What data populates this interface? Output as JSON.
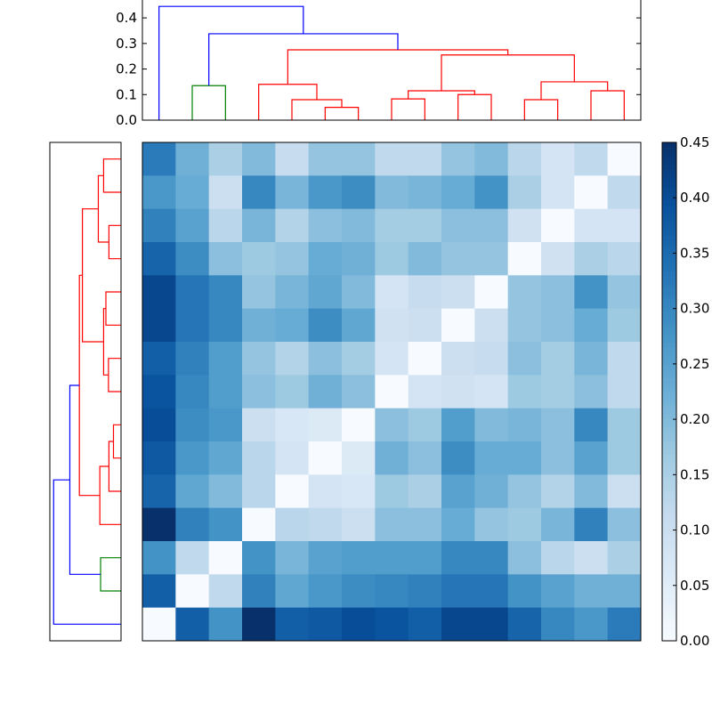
{
  "chart_data": [
    {
      "type": "dendrogram",
      "position": "top",
      "ylim": [
        0,
        0.47
      ],
      "yticks": [
        "0.0",
        "0.1",
        "0.2",
        "0.3",
        "0.4"
      ],
      "ytick_values": [
        0,
        0.1,
        0.2,
        0.3,
        0.4
      ],
      "leaf_count": 15,
      "links": [
        {
          "a": 1,
          "b": 2,
          "height": 0.135,
          "ha": 0,
          "hb": 0,
          "color": "#008000"
        },
        {
          "a": 5,
          "b": 6,
          "height": 0.05,
          "ha": 0,
          "hb": 0,
          "color": "#ff0000"
        },
        {
          "a": 4,
          "b": 5.5,
          "height": 0.08,
          "ha": 0,
          "hb": 0.05,
          "color": "#ff0000"
        },
        {
          "a": 3,
          "b": 4.75,
          "height": 0.14,
          "ha": 0,
          "hb": 0.08,
          "color": "#ff0000"
        },
        {
          "a": 7,
          "b": 8,
          "height": 0.083,
          "ha": 0,
          "hb": 0,
          "color": "#ff0000"
        },
        {
          "a": 9,
          "b": 10,
          "height": 0.1,
          "ha": 0,
          "hb": 0,
          "color": "#ff0000"
        },
        {
          "a": 7.5,
          "b": 9.5,
          "height": 0.115,
          "ha": 0.083,
          "hb": 0.1,
          "color": "#ff0000"
        },
        {
          "a": 11,
          "b": 12,
          "height": 0.08,
          "ha": 0,
          "hb": 0,
          "color": "#ff0000"
        },
        {
          "a": 13,
          "b": 14,
          "height": 0.115,
          "ha": 0,
          "hb": 0,
          "color": "#ff0000"
        },
        {
          "a": 11.5,
          "b": 13.5,
          "height": 0.15,
          "ha": 0.08,
          "hb": 0.115,
          "color": "#ff0000"
        },
        {
          "a": 8.5,
          "b": 12.5,
          "height": 0.255,
          "ha": 0.115,
          "hb": 0.15,
          "color": "#ff0000"
        },
        {
          "a": 3.875,
          "b": 10.5,
          "height": 0.275,
          "ha": 0.14,
          "hb": 0.255,
          "color": "#ff0000"
        },
        {
          "a": 1.5,
          "b": 7.1875,
          "height": 0.338,
          "ha": 0.135,
          "hb": 0.275,
          "color": "#0000ff"
        },
        {
          "a": 0,
          "b": 4.34375,
          "height": 0.445,
          "ha": 0,
          "hb": 0.338,
          "color": "#0000ff"
        }
      ]
    },
    {
      "type": "dendrogram",
      "position": "left",
      "orientation": "left, leaves ordered bottom to top",
      "same_tree_as": "top"
    },
    {
      "type": "heatmap",
      "colormap": "Blues",
      "vmin": 0,
      "vmax": 0.45,
      "colorbar_ticks": [
        "0.00",
        "0.05",
        "0.10",
        "0.15",
        "0.20",
        "0.25",
        "0.30",
        "0.35",
        "0.40",
        "0.45"
      ],
      "colorbar_tick_values": [
        0,
        0.05,
        0.1,
        0.15,
        0.2,
        0.25,
        0.3,
        0.35,
        0.4,
        0.45
      ],
      "rows_top_to_bottom": [
        [
          0.32,
          0.22,
          0.15,
          0.2,
          0.11,
          0.18,
          0.18,
          0.12,
          0.12,
          0.18,
          0.2,
          0.13,
          0.08,
          0.12,
          0.0
        ],
        [
          0.27,
          0.23,
          0.1,
          0.3,
          0.21,
          0.27,
          0.29,
          0.2,
          0.21,
          0.23,
          0.28,
          0.15,
          0.08,
          0.0,
          0.12
        ],
        [
          0.31,
          0.25,
          0.13,
          0.21,
          0.14,
          0.19,
          0.2,
          0.16,
          0.16,
          0.19,
          0.19,
          0.09,
          0.0,
          0.08,
          0.08
        ],
        [
          0.36,
          0.29,
          0.19,
          0.17,
          0.18,
          0.23,
          0.22,
          0.17,
          0.2,
          0.18,
          0.18,
          0.0,
          0.09,
          0.15,
          0.13
        ],
        [
          0.41,
          0.33,
          0.3,
          0.18,
          0.21,
          0.24,
          0.2,
          0.08,
          0.11,
          0.1,
          0.0,
          0.18,
          0.19,
          0.28,
          0.18
        ],
        [
          0.41,
          0.33,
          0.3,
          0.22,
          0.23,
          0.29,
          0.24,
          0.09,
          0.1,
          0.0,
          0.1,
          0.18,
          0.19,
          0.23,
          0.17
        ],
        [
          0.37,
          0.31,
          0.26,
          0.18,
          0.14,
          0.19,
          0.16,
          0.08,
          0.0,
          0.1,
          0.11,
          0.19,
          0.16,
          0.21,
          0.12
        ],
        [
          0.39,
          0.3,
          0.26,
          0.19,
          0.17,
          0.22,
          0.19,
          0.0,
          0.08,
          0.09,
          0.08,
          0.17,
          0.16,
          0.19,
          0.12
        ],
        [
          0.4,
          0.29,
          0.27,
          0.1,
          0.07,
          0.06,
          0.0,
          0.19,
          0.17,
          0.26,
          0.2,
          0.21,
          0.19,
          0.3,
          0.17
        ],
        [
          0.38,
          0.27,
          0.24,
          0.13,
          0.08,
          0.0,
          0.06,
          0.22,
          0.19,
          0.29,
          0.23,
          0.23,
          0.19,
          0.25,
          0.17
        ],
        [
          0.36,
          0.24,
          0.2,
          0.13,
          0.0,
          0.08,
          0.07,
          0.17,
          0.15,
          0.25,
          0.22,
          0.18,
          0.14,
          0.2,
          0.1
        ],
        [
          0.45,
          0.31,
          0.28,
          0.0,
          0.13,
          0.12,
          0.1,
          0.19,
          0.19,
          0.23,
          0.18,
          0.17,
          0.21,
          0.31,
          0.19
        ],
        [
          0.28,
          0.12,
          0.0,
          0.28,
          0.21,
          0.25,
          0.26,
          0.26,
          0.26,
          0.3,
          0.3,
          0.19,
          0.13,
          0.1,
          0.15
        ],
        [
          0.37,
          0.0,
          0.12,
          0.31,
          0.24,
          0.27,
          0.29,
          0.3,
          0.31,
          0.33,
          0.33,
          0.28,
          0.25,
          0.22,
          0.22
        ],
        [
          0.0,
          0.37,
          0.28,
          0.45,
          0.37,
          0.38,
          0.4,
          0.39,
          0.37,
          0.41,
          0.41,
          0.36,
          0.3,
          0.27,
          0.32
        ]
      ]
    }
  ]
}
